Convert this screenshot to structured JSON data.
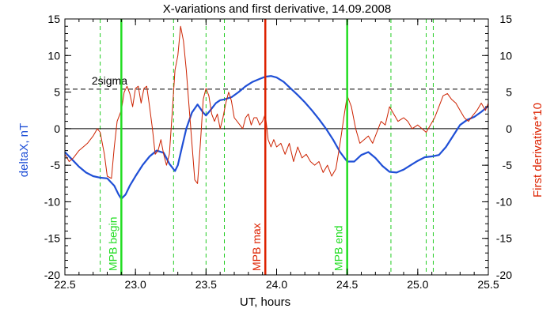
{
  "chart_data": {
    "type": "line",
    "title": "X-variations and first derivative, 14.09.2008",
    "xlabel": "UT, hours",
    "ylabel_left": "deltaX, nT",
    "ylabel_right": "First derivative*10",
    "xlim": [
      22.5,
      25.5
    ],
    "ylim": [
      -20,
      15
    ],
    "xticks": [
      "22.5",
      "23.0",
      "23.5",
      "24.0",
      "24.5",
      "25.0",
      "25.5"
    ],
    "xtick_values": [
      22.5,
      23.0,
      23.5,
      24.0,
      24.5,
      25.0,
      25.5
    ],
    "yticks": [
      "-20",
      "-15",
      "-10",
      "-5",
      "0",
      "5",
      "10",
      "15"
    ],
    "ytick_values": [
      -20,
      -15,
      -10,
      -5,
      0,
      5,
      10,
      15
    ],
    "grid": false,
    "colors": {
      "deltaX": "#1f4fd6",
      "derivative": "#cc2200",
      "mpb_edges": "#22dd22",
      "mpb_max": "#dd2200",
      "dashed_green": "#22cc22",
      "axis": "#000000",
      "right_label": "#dd2200",
      "left_label": "#1f4fd6"
    },
    "sigma_label": "2sigma",
    "sigma_level": 5.4,
    "zero_level": 0,
    "vertical_lines": [
      {
        "x": 22.9,
        "label": "MPB begin",
        "color": "#22dd22",
        "style": "solid"
      },
      {
        "x": 23.92,
        "label": "MPB max",
        "color": "#dd2200",
        "style": "solid"
      },
      {
        "x": 24.5,
        "label": "MPB end",
        "color": "#22dd22",
        "style": "solid"
      }
    ],
    "dashed_lines_x": [
      22.75,
      23.27,
      23.5,
      23.63,
      24.81,
      25.06,
      25.11
    ],
    "series": [
      {
        "name": "deltaX",
        "x": [
          22.5,
          22.55,
          22.6,
          22.65,
          22.7,
          22.75,
          22.8,
          22.85,
          22.88,
          22.9,
          22.93,
          22.96,
          23.0,
          23.05,
          23.1,
          23.15,
          23.2,
          23.24,
          23.28,
          23.3,
          23.33,
          23.36,
          23.4,
          23.44,
          23.48,
          23.5,
          23.53,
          23.57,
          23.6,
          23.63,
          23.68,
          23.73,
          23.78,
          23.83,
          23.88,
          23.92,
          23.96,
          24.0,
          24.05,
          24.1,
          24.15,
          24.2,
          24.25,
          24.3,
          24.35,
          24.4,
          24.45,
          24.5,
          24.55,
          24.6,
          24.65,
          24.7,
          24.75,
          24.8,
          24.85,
          24.9,
          24.95,
          25.0,
          25.05,
          25.1,
          25.15,
          25.2,
          25.25,
          25.3,
          25.35,
          25.4,
          25.45,
          25.5
        ],
        "y": [
          -3.2,
          -4.2,
          -5.2,
          -6.0,
          -6.5,
          -6.7,
          -6.8,
          -7.8,
          -9.0,
          -9.6,
          -9.0,
          -7.8,
          -6.5,
          -5.0,
          -3.8,
          -3.0,
          -3.3,
          -4.8,
          -5.8,
          -5.0,
          -2.5,
          0.0,
          2.2,
          3.3,
          2.2,
          1.8,
          2.5,
          3.5,
          3.9,
          4.0,
          4.3,
          5.0,
          5.8,
          6.4,
          6.8,
          7.1,
          7.2,
          7.0,
          6.4,
          5.5,
          4.6,
          3.6,
          2.5,
          1.3,
          0.0,
          -1.5,
          -3.2,
          -4.5,
          -4.5,
          -3.6,
          -3.2,
          -4.0,
          -5.1,
          -5.9,
          -6.0,
          -5.6,
          -5.0,
          -4.4,
          -3.9,
          -3.8,
          -3.6,
          -2.5,
          -1.0,
          0.5,
          1.2,
          1.6,
          2.3,
          3.1
        ]
      },
      {
        "name": "First derivative*10",
        "x": [
          22.5,
          22.53,
          22.56,
          22.6,
          22.63,
          22.66,
          22.7,
          22.73,
          22.75,
          22.78,
          22.8,
          22.83,
          22.85,
          22.87,
          22.9,
          22.92,
          22.94,
          22.96,
          22.98,
          23.0,
          23.02,
          23.04,
          23.06,
          23.08,
          23.1,
          23.12,
          23.14,
          23.16,
          23.18,
          23.2,
          23.22,
          23.24,
          23.26,
          23.28,
          23.3,
          23.32,
          23.34,
          23.36,
          23.38,
          23.4,
          23.42,
          23.44,
          23.46,
          23.48,
          23.5,
          23.52,
          23.54,
          23.56,
          23.58,
          23.6,
          23.62,
          23.64,
          23.66,
          23.68,
          23.7,
          23.72,
          23.74,
          23.76,
          23.78,
          23.8,
          23.82,
          23.84,
          23.86,
          23.88,
          23.9,
          23.92,
          23.94,
          23.96,
          23.98,
          24.0,
          24.03,
          24.06,
          24.09,
          24.12,
          24.15,
          24.18,
          24.21,
          24.24,
          24.27,
          24.3,
          24.33,
          24.36,
          24.39,
          24.42,
          24.45,
          24.48,
          24.5,
          24.53,
          24.56,
          24.59,
          24.62,
          24.65,
          24.68,
          24.71,
          24.74,
          24.77,
          24.8,
          24.83,
          24.86,
          24.9,
          24.93,
          24.96,
          25.0,
          25.03,
          25.06,
          25.09,
          25.12,
          25.15,
          25.18,
          25.21,
          25.24,
          25.27,
          25.3,
          25.33,
          25.36,
          25.39,
          25.42,
          25.45,
          25.48,
          25.5
        ],
        "y": [
          -3.5,
          -4.5,
          -4.0,
          -3.0,
          -2.5,
          -2.0,
          -1.0,
          0.0,
          -0.5,
          -3.5,
          -6.5,
          -6.8,
          -2.5,
          1.0,
          2.5,
          5.0,
          5.8,
          4.8,
          3.0,
          5.5,
          5.8,
          3.5,
          5.5,
          5.8,
          3.0,
          0.0,
          -3.5,
          -3.0,
          -1.5,
          -3.5,
          -5.0,
          -3.5,
          2.0,
          8.0,
          10.0,
          14.0,
          12.0,
          8.0,
          3.0,
          -2.0,
          -7.0,
          -7.5,
          -2.0,
          4.0,
          5.5,
          4.5,
          2.0,
          1.0,
          2.0,
          0.0,
          1.5,
          3.5,
          5.0,
          3.8,
          1.5,
          1.0,
          0.5,
          0.0,
          1.5,
          2.0,
          0.5,
          1.5,
          1.5,
          0.5,
          1.0,
          2.0,
          -1.5,
          -2.5,
          -1.5,
          -2.5,
          -2.0,
          -3.5,
          -2.0,
          -4.5,
          -2.5,
          -4.0,
          -3.5,
          -4.5,
          -5.0,
          -4.5,
          -6.0,
          -5.0,
          -6.5,
          -5.5,
          -2.0,
          2.0,
          4.5,
          3.0,
          0.0,
          -2.0,
          -1.5,
          -1.0,
          -2.0,
          -0.5,
          1.0,
          0.5,
          3.0,
          2.0,
          1.0,
          1.5,
          1.0,
          0.0,
          0.5,
          0.0,
          -0.5,
          0.5,
          1.5,
          3.0,
          4.5,
          4.8,
          4.0,
          3.5,
          2.5,
          1.5,
          1.0,
          1.8,
          2.5,
          3.5,
          2.5,
          3.5
        ]
      }
    ]
  }
}
